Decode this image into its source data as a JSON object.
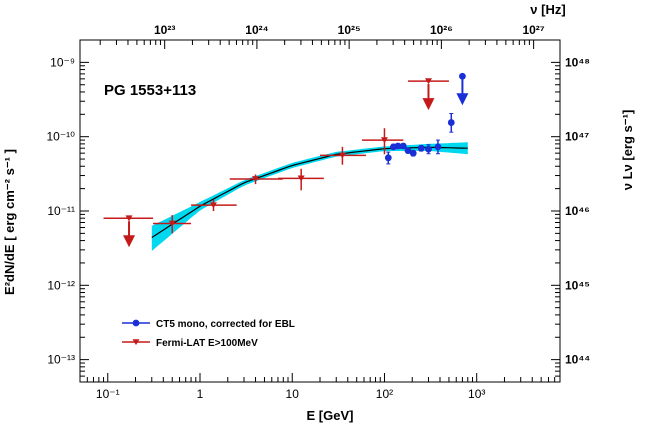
{
  "chart_data": {
    "type": "scatter",
    "source_label": "PG 1553+113",
    "xlabel": "E [GeV]",
    "ylabel": "E²dN/dE [ erg cm⁻² s⁻¹ ]",
    "top_axis_label": "ν [Hz]",
    "right_axis_label": "ν Lν [erg s⁻¹]",
    "x_scale": "log",
    "y_scale": "log",
    "xlim": [
      0.05,
      8000
    ],
    "ylim": [
      5e-14,
      2e-09
    ],
    "x_ticks": [
      {
        "value": 0.1,
        "label": "10⁻¹"
      },
      {
        "value": 1,
        "label": "1"
      },
      {
        "value": 10,
        "label": "10"
      },
      {
        "value": 100,
        "label": "10²"
      },
      {
        "value": 1000,
        "label": "10³"
      }
    ],
    "y_ticks": [
      {
        "value": 1e-13,
        "label": "10⁻¹³"
      },
      {
        "value": 1e-12,
        "label": "10⁻¹²"
      },
      {
        "value": 1e-11,
        "label": "10⁻¹¹"
      },
      {
        "value": 1e-10,
        "label": "10⁻¹⁰"
      },
      {
        "value": 1e-09,
        "label": "10⁻⁹"
      }
    ],
    "top_ticks": [
      {
        "energy": 0.414,
        "label": "10²³"
      },
      {
        "energy": 4.14,
        "label": "10²⁴"
      },
      {
        "energy": 41.4,
        "label": "10²⁵"
      },
      {
        "energy": 414,
        "label": "10²⁶"
      },
      {
        "energy": 4140,
        "label": "10²⁷"
      }
    ],
    "right_ticks": [
      {
        "flux": 1e-13,
        "label": "10⁴⁴"
      },
      {
        "flux": 1e-12,
        "label": "10⁴⁵"
      },
      {
        "flux": 1e-11,
        "label": "10⁴⁶"
      },
      {
        "flux": 1e-10,
        "label": "10⁴⁷"
      },
      {
        "flux": 1e-09,
        "label": "10⁴⁸"
      }
    ],
    "legend_position": "bottom-left",
    "series": [
      {
        "name": "CT5 mono, corrected for EBL",
        "color": "#1a2fd6",
        "marker": "circle",
        "points": [
          {
            "x": 110,
            "y": 5.2e-11,
            "ylo": 4.3e-11,
            "yhi": 6.2e-11
          },
          {
            "x": 125,
            "y": 7.3e-11,
            "ylo": 6.7e-11,
            "yhi": 7.9e-11
          },
          {
            "x": 140,
            "y": 7.5e-11,
            "ylo": 7e-11,
            "yhi": 8e-11
          },
          {
            "x": 160,
            "y": 7.5e-11,
            "ylo": 7e-11,
            "yhi": 8e-11
          },
          {
            "x": 180,
            "y": 6.5e-11,
            "ylo": 6e-11,
            "yhi": 7e-11
          },
          {
            "x": 205,
            "y": 6e-11,
            "ylo": 5.5e-11,
            "yhi": 6.5e-11
          },
          {
            "x": 250,
            "y": 7e-11,
            "ylo": 6.4e-11,
            "yhi": 7.6e-11
          },
          {
            "x": 300,
            "y": 6.8e-11,
            "ylo": 5.9e-11,
            "yhi": 7.8e-11
          },
          {
            "x": 380,
            "y": 7.3e-11,
            "ylo": 5.9e-11,
            "yhi": 9e-11
          },
          {
            "x": 530,
            "y": 1.55e-10,
            "ylo": 1.15e-10,
            "yhi": 2.05e-10
          }
        ],
        "upper_limits": [
          {
            "x": 700,
            "y": 6.5e-10
          }
        ]
      },
      {
        "name": "Fermi-LAT E>100MeV",
        "color": "#c41a1a",
        "marker": "triangle-down",
        "points": [
          {
            "x": 0.5,
            "y": 6.8e-12,
            "xlo": 0.31,
            "xhi": 0.8,
            "ylo": 5e-12,
            "yhi": 8.8e-12
          },
          {
            "x": 1.4,
            "y": 1.2e-11,
            "xlo": 0.8,
            "xhi": 2.5,
            "ylo": 1e-11,
            "yhi": 1.42e-11
          },
          {
            "x": 4.0,
            "y": 2.7e-11,
            "xlo": 2.1,
            "xhi": 7.9,
            "ylo": 2.3e-11,
            "yhi": 3.1e-11
          },
          {
            "x": 12.5,
            "y": 2.75e-11,
            "xlo": 7.0,
            "xhi": 22,
            "ylo": 1.9e-11,
            "yhi": 3.7e-11
          },
          {
            "x": 35,
            "y": 5.6e-11,
            "xlo": 20,
            "xhi": 63,
            "ylo": 4.2e-11,
            "yhi": 7.3e-11
          },
          {
            "x": 100,
            "y": 9e-11,
            "xlo": 57,
            "xhi": 160,
            "ylo": 5.8e-11,
            "yhi": 1.3e-10
          }
        ],
        "upper_limits": [
          {
            "x": 0.17,
            "y": 8e-12,
            "xlo": 0.09,
            "xhi": 0.31
          },
          {
            "x": 300,
            "y": 5.6e-10,
            "xlo": 180,
            "xhi": 500
          }
        ]
      }
    ],
    "fit": {
      "color": "#000000",
      "band_color": "#00d8f0",
      "points": [
        {
          "x": 0.3,
          "y": 4.4e-12,
          "lo": 2.9e-12,
          "hi": 6.3e-12
        },
        {
          "x": 1,
          "y": 1.16e-11,
          "lo": 1.02e-11,
          "hi": 1.32e-11
        },
        {
          "x": 3,
          "y": 2.4e-11,
          "lo": 2.2e-11,
          "hi": 2.6e-11
        },
        {
          "x": 10,
          "y": 4.1e-11,
          "lo": 3.8e-11,
          "hi": 4.45e-11
        },
        {
          "x": 30,
          "y": 5.8e-11,
          "lo": 5.4e-11,
          "hi": 6.25e-11
        },
        {
          "x": 100,
          "y": 6.9e-11,
          "lo": 6.4e-11,
          "hi": 7.4e-11
        },
        {
          "x": 300,
          "y": 7.2e-11,
          "lo": 6.45e-11,
          "hi": 8e-11
        },
        {
          "x": 800,
          "y": 7e-11,
          "lo": 5.8e-11,
          "hi": 8.4e-11
        }
      ]
    }
  }
}
